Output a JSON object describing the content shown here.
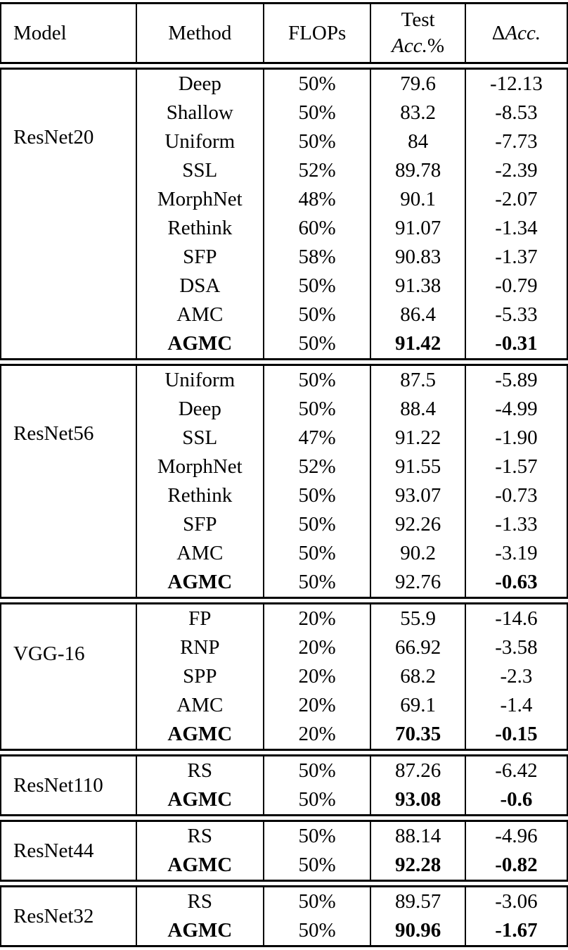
{
  "table": {
    "header": {
      "model": "Model",
      "method": "Method",
      "flops": "FLOPs",
      "test_acc_line1": "Test",
      "test_acc_word": "Acc.",
      "test_acc_pct": "%",
      "delta_symbol": "Δ",
      "delta_word": "Acc."
    },
    "sections": [
      {
        "model": "ResNet20",
        "rows": [
          {
            "method": "Deep",
            "flops": "50%",
            "acc": "79.6",
            "delta": "-12.13"
          },
          {
            "method": "Shallow",
            "flops": "50%",
            "acc": "83.2",
            "delta": "-8.53"
          },
          {
            "method": "Uniform",
            "flops": "50%",
            "acc": "84",
            "delta": "-7.73"
          },
          {
            "method": "SSL",
            "flops": "52%",
            "acc": "89.78",
            "delta": "-2.39"
          },
          {
            "method": "MorphNet",
            "flops": "48%",
            "acc": "90.1",
            "delta": "-2.07"
          },
          {
            "method": "Rethink",
            "flops": "60%",
            "acc": "91.07",
            "delta": "-1.34"
          },
          {
            "method": "SFP",
            "flops": "58%",
            "acc": "90.83",
            "delta": "-1.37"
          },
          {
            "method": "DSA",
            "flops": "50%",
            "acc": "91.38",
            "delta": "-0.79"
          },
          {
            "method": "AMC",
            "flops": "50%",
            "acc": "86.4",
            "delta": "-5.33"
          },
          {
            "method": "AGMC",
            "flops": "50%",
            "acc": "91.42",
            "delta": "-0.31",
            "bold": {
              "method": true,
              "acc": true,
              "delta": true
            }
          }
        ]
      },
      {
        "model": "ResNet56",
        "rows": [
          {
            "method": "Uniform",
            "flops": "50%",
            "acc": "87.5",
            "delta": "-5.89"
          },
          {
            "method": "Deep",
            "flops": "50%",
            "acc": "88.4",
            "delta": "-4.99"
          },
          {
            "method": "SSL",
            "flops": "47%",
            "acc": "91.22",
            "delta": "-1.90"
          },
          {
            "method": "MorphNet",
            "flops": "52%",
            "acc": "91.55",
            "delta": "-1.57"
          },
          {
            "method": "Rethink",
            "flops": "50%",
            "acc": "93.07",
            "delta": "-0.73"
          },
          {
            "method": "SFP",
            "flops": "50%",
            "acc": "92.26",
            "delta": "-1.33"
          },
          {
            "method": "AMC",
            "flops": "50%",
            "acc": "90.2",
            "delta": "-3.19"
          },
          {
            "method": "AGMC",
            "flops": "50%",
            "acc": "92.76",
            "delta": "-0.63",
            "bold": {
              "method": true,
              "acc": false,
              "delta": true
            }
          }
        ]
      },
      {
        "model": "VGG-16",
        "rows": [
          {
            "method": "FP",
            "flops": "20%",
            "acc": "55.9",
            "delta": "-14.6"
          },
          {
            "method": "RNP",
            "flops": "20%",
            "acc": "66.92",
            "delta": "-3.58"
          },
          {
            "method": "SPP",
            "flops": "20%",
            "acc": "68.2",
            "delta": "-2.3"
          },
          {
            "method": "AMC",
            "flops": "20%",
            "acc": "69.1",
            "delta": "-1.4"
          },
          {
            "method": "AGMC",
            "flops": "20%",
            "acc": "70.35",
            "delta": "-0.15",
            "bold": {
              "method": true,
              "acc": true,
              "delta": true
            }
          }
        ]
      },
      {
        "model": "ResNet110",
        "rows": [
          {
            "method": "RS",
            "flops": "50%",
            "acc": "87.26",
            "delta": "-6.42"
          },
          {
            "method": "AGMC",
            "flops": "50%",
            "acc": "93.08",
            "delta": "-0.6",
            "bold": {
              "method": true,
              "acc": true,
              "delta": true
            }
          }
        ]
      },
      {
        "model": "ResNet44",
        "rows": [
          {
            "method": "RS",
            "flops": "50%",
            "acc": "88.14",
            "delta": "-4.96"
          },
          {
            "method": "AGMC",
            "flops": "50%",
            "acc": "92.28",
            "delta": "-0.82",
            "bold": {
              "method": true,
              "acc": true,
              "delta": true
            }
          }
        ]
      },
      {
        "model": "ResNet32",
        "rows": [
          {
            "method": "RS",
            "flops": "50%",
            "acc": "89.57",
            "delta": "-3.06"
          },
          {
            "method": "AGMC",
            "flops": "50%",
            "acc": "90.96",
            "delta": "-1.67",
            "bold": {
              "method": true,
              "acc": true,
              "delta": true
            }
          }
        ]
      }
    ]
  }
}
